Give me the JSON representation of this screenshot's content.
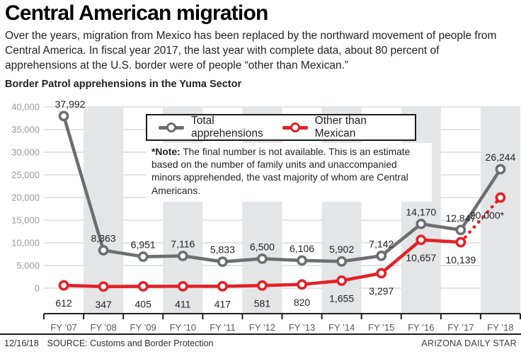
{
  "header": {
    "title": "Central American migration",
    "subtitle": "Over the years, migration from Mexico has been replaced by the northward movement of people from Central America. In fiscal year 2017, the last year with complete data, about 80 percent of apprehensions at the U.S. border were of people “other than Mexican.”",
    "chart_label": "Border Patrol apprehensions in the Yuma Sector"
  },
  "legend": {
    "items": [
      {
        "label": "Total apprehensions",
        "color": "#6d6e71"
      },
      {
        "label": "Other than Mexican",
        "color": "#e32126"
      }
    ]
  },
  "note": {
    "label": "*Note:",
    "text": " The final number is not available. This is an estimate based on the number of family units and unaccompanied minors apprehended, the vast majority of whom are Central Americans."
  },
  "footer": {
    "date": "12/16/18",
    "source": "SOURCE: Customs and Border Protection",
    "credit": "ARIZONA DAILY STAR"
  },
  "colors": {
    "total_line": "#6d6e71",
    "other_line": "#e32126",
    "band": "#e4e5e6",
    "grid": "#d2d3d5",
    "axis": "#231f20",
    "ytick_text": "#96989a",
    "xtick_text": "#57585a",
    "label_text": "#231f20"
  },
  "chart_data": {
    "type": "line",
    "title": "Border Patrol apprehensions in the Yuma Sector",
    "categories": [
      "FY ’07",
      "FY ’08",
      "FY ’09",
      "FY ’10",
      "FY ’11",
      "FY ’12",
      "FY ’13",
      "FY ’14",
      "FY ’15",
      "FY ’16",
      "FY ’17",
      "FY ’18"
    ],
    "series": [
      {
        "name": "Total apprehensions",
        "values": [
          37992,
          8363,
          6951,
          7116,
          5833,
          6500,
          6106,
          5902,
          7142,
          14170,
          12847,
          26244
        ],
        "labels": [
          "37,992",
          "8,363",
          "6,951",
          "7,116",
          "5,833",
          "6,500",
          "6,106",
          "5,902",
          "7,142",
          "14,170",
          "12,847",
          "26,244"
        ]
      },
      {
        "name": "Other than Mexican",
        "values": [
          612,
          347,
          405,
          411,
          417,
          581,
          820,
          1655,
          3297,
          10657,
          10139,
          20000
        ],
        "labels": [
          "612",
          "347",
          "405",
          "411",
          "417",
          "581",
          "820",
          "1,655",
          "3,297",
          "10,657",
          "10,139",
          "20,000*"
        ],
        "last_segment_dashed": true,
        "last_value_is_estimate": true
      }
    ],
    "y_ticks": [
      "40,000",
      "35,000",
      "30,000",
      "25,000",
      "20,000",
      "15,000",
      "10,000",
      "5,000",
      "0"
    ],
    "ylim": [
      0,
      40000
    ],
    "grid": true,
    "alternating_bands": "even columns shaded (FY '08, '10, '12, '14, '16, '18)",
    "legend_position": "top center, boxed"
  }
}
